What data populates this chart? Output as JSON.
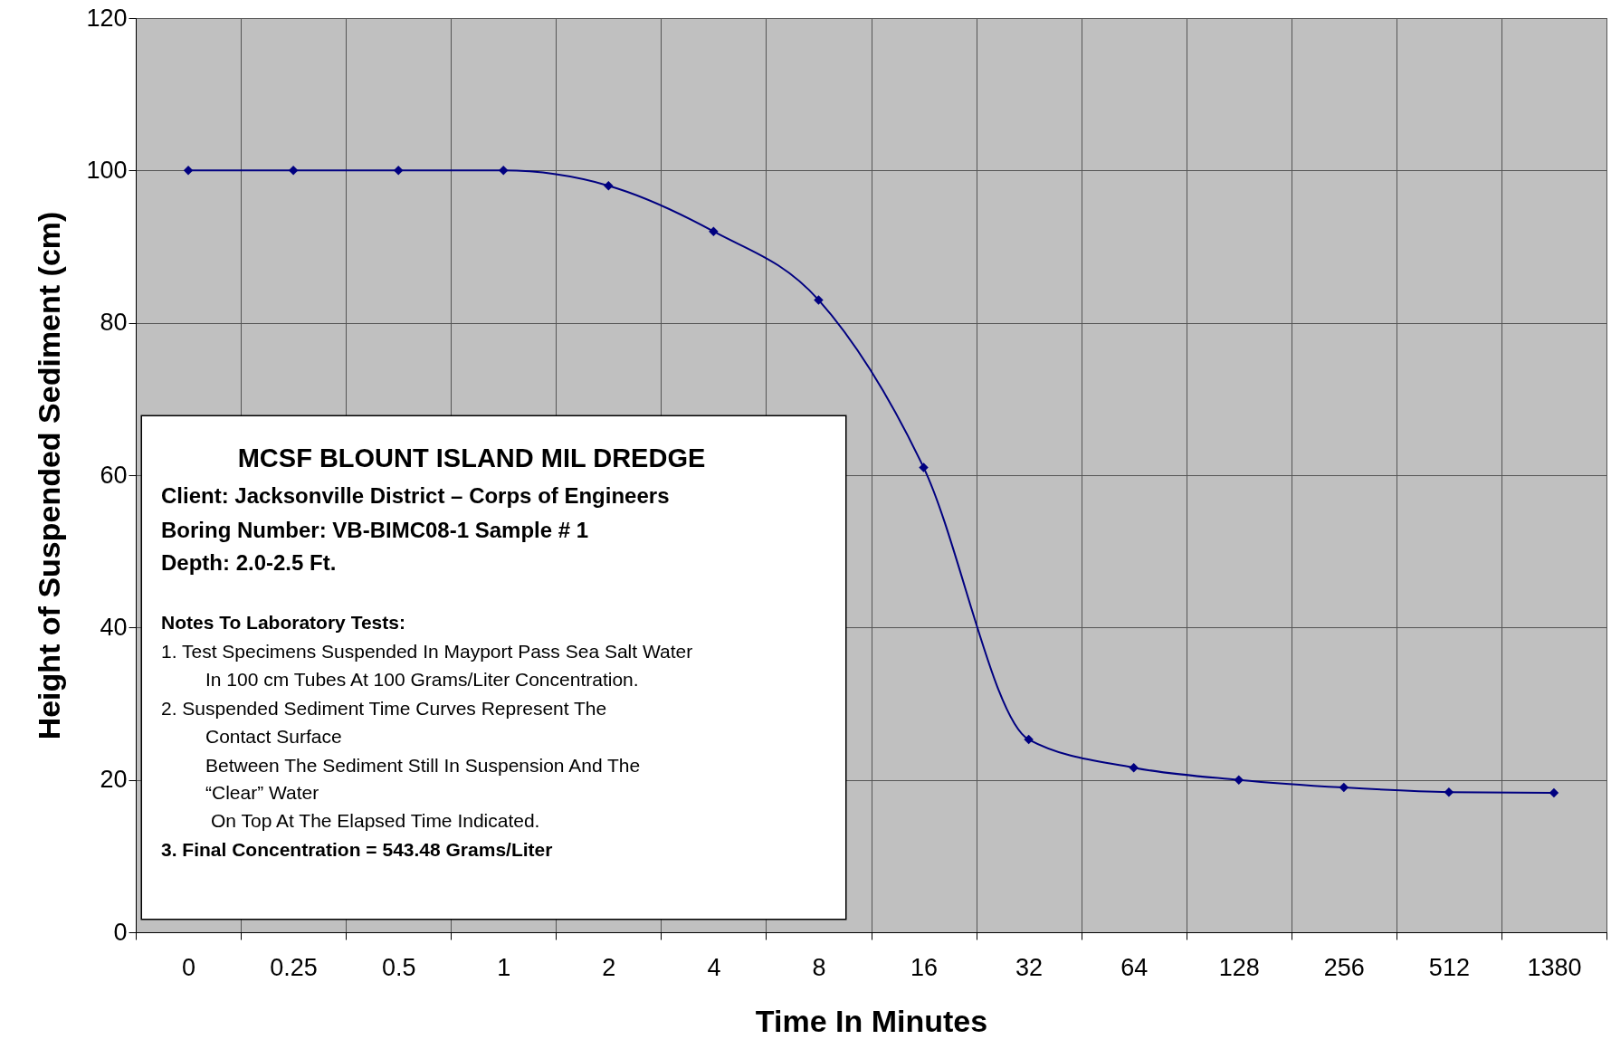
{
  "chart_data": {
    "type": "line",
    "xlabel": "Time In Minutes",
    "ylabel": "Height of Suspended Sediment (cm)",
    "categories": [
      "0",
      "0.25",
      "0.5",
      "1",
      "2",
      "4",
      "8",
      "16",
      "32",
      "64",
      "128",
      "256",
      "512",
      "1380"
    ],
    "series": [
      {
        "color": "#000080",
        "values": [
          100,
          100,
          100,
          100,
          98,
          92,
          83,
          61,
          25.3,
          21.6,
          20,
          19,
          18.4,
          18.3
        ]
      }
    ],
    "ylim": [
      0,
      120
    ],
    "yticks": [
      0,
      20,
      40,
      60,
      80,
      100,
      120
    ],
    "grid": true,
    "marker": "diamond",
    "line_style": "solid",
    "annotations": [
      "MCSF BLOUNT ISLAND MIL DREDGE",
      "Client: Jacksonville District – Corps of Engineers",
      "Boring Number: VB-BIMC08-1       Sample # 1",
      "Depth: 2.0-2.5 Ft.",
      "Notes To Laboratory Tests:",
      "1.  Test Specimens Suspended In Mayport Pass Sea Salt Water",
      "In 100 cm Tubes At 100 Grams/Liter Concentration.",
      "2.  Suspended Sediment Time Curves Represent The",
      "Contact Surface",
      "Between The Sediment Still In Suspension And The",
      "“Clear” Water",
      "On Top At The Elapsed Time  Indicated.",
      "3.  Final Concentration =  543.48 Grams/Liter"
    ]
  }
}
